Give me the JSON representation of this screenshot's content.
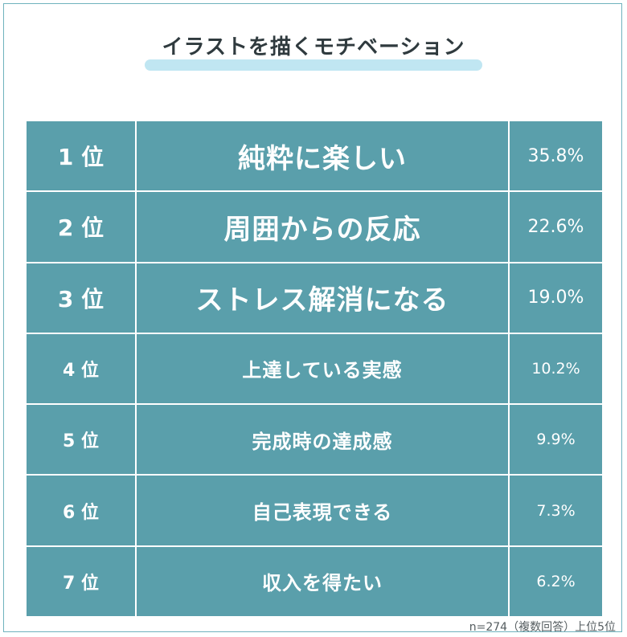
{
  "title": "イラストを描くモチベーション",
  "colors": {
    "cell": "#5a9fab",
    "underline": "#b9e3f1",
    "border": "#ffffff"
  },
  "chart_data": {
    "type": "table",
    "title": "イラストを描くモチベーション",
    "rows": [
      {
        "rank": "1 位",
        "item": "純粋に楽しい",
        "value": 35.8,
        "label": "35.8%"
      },
      {
        "rank": "2 位",
        "item": "周囲からの反応",
        "value": 22.6,
        "label": "22.6%"
      },
      {
        "rank": "3 位",
        "item": "ストレス解消になる",
        "value": 19.0,
        "label": "19.0%"
      },
      {
        "rank": "4 位",
        "item": "上達している実感",
        "value": 10.2,
        "label": "10.2%"
      },
      {
        "rank": "5 位",
        "item": "完成時の達成感",
        "value": 9.9,
        "label": "9.9%"
      },
      {
        "rank": "6 位",
        "item": "自己表現できる",
        "value": 7.3,
        "label": "7.3%"
      },
      {
        "rank": "7 位",
        "item": "収入を得たい",
        "value": 6.2,
        "label": "6.2%"
      }
    ]
  },
  "footnote": "n=274（複数回答）上位5位"
}
